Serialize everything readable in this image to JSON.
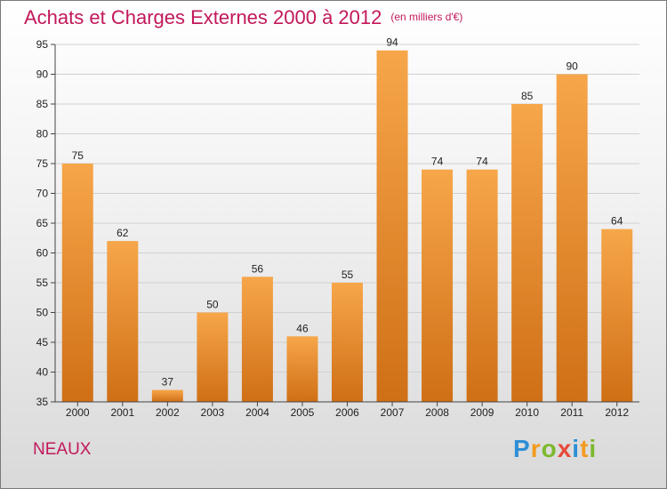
{
  "header": {
    "title": "Achats et Charges Externes 2000 à 2012",
    "unit": "(en milliers d'€)"
  },
  "footer": {
    "commune": "NEAUX",
    "brand_letters": [
      {
        "ch": "P",
        "color": "#2e8fd6"
      },
      {
        "ch": "r",
        "color": "#f39a1f"
      },
      {
        "ch": "o",
        "color": "#7cb82f"
      },
      {
        "ch": "x",
        "color": "#e84a3a"
      },
      {
        "ch": "i",
        "color": "#2e8fd6"
      },
      {
        "ch": "t",
        "color": "#f39a1f"
      },
      {
        "ch": "i",
        "color": "#7cb82f"
      }
    ]
  },
  "colors": {
    "title": "#c2185b",
    "bar_light": "#f7a64a",
    "bar_dark": "#cf6f16",
    "grid": "#d0d0d0"
  },
  "chart_data": {
    "type": "bar",
    "title": "Achats et Charges Externes 2000 à 2012",
    "subtitle": "(en milliers d'€)",
    "categories": [
      "2000",
      "2001",
      "2002",
      "2003",
      "2004",
      "2005",
      "2006",
      "2007",
      "2008",
      "2009",
      "2010",
      "2011",
      "2012"
    ],
    "values": [
      75,
      62,
      37,
      50,
      56,
      46,
      55,
      94,
      74,
      74,
      85,
      90,
      64
    ],
    "ylim": [
      35,
      95
    ],
    "yticks": [
      35,
      40,
      45,
      50,
      55,
      60,
      65,
      70,
      75,
      80,
      85,
      90,
      95
    ],
    "grid": true,
    "xlabel": "",
    "ylabel": ""
  }
}
